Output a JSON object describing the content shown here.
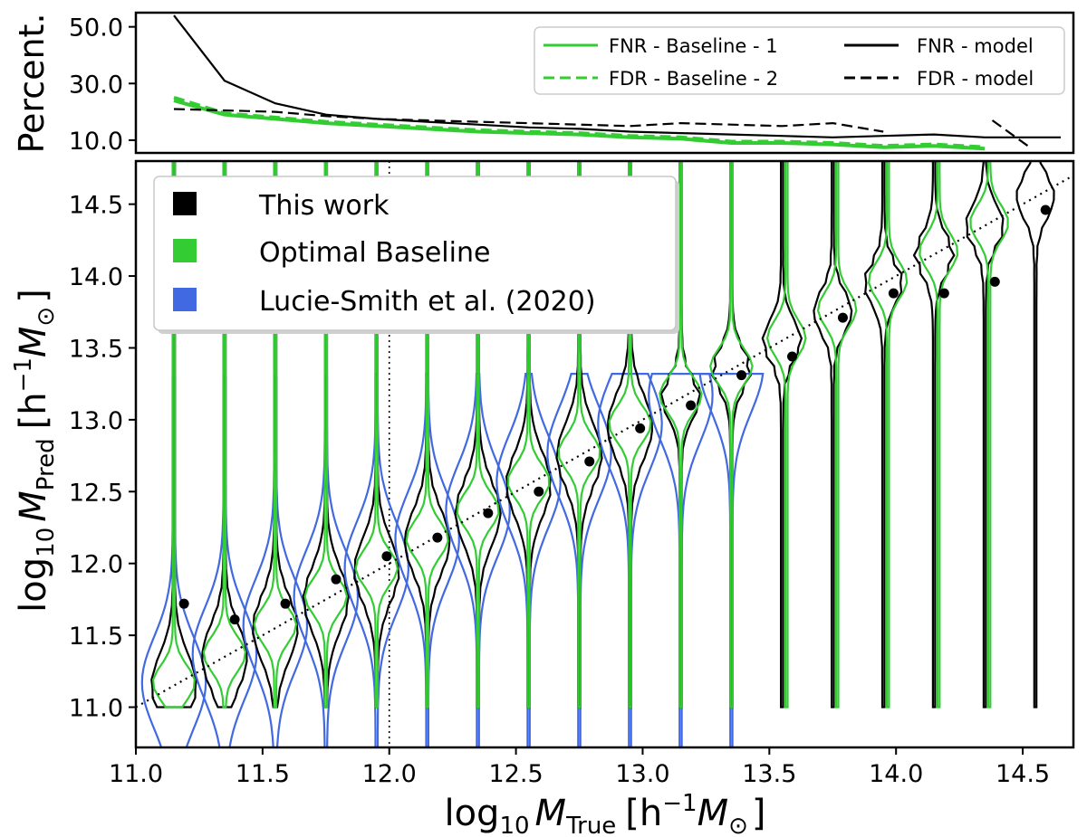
{
  "chart_data": [
    {
      "panel": "top",
      "type": "line",
      "ylabel": "Percent.",
      "xlim": [
        11.0,
        14.7
      ],
      "ylim": [
        5.5,
        55.0
      ],
      "yticks": [
        10.0,
        30.0,
        50.0
      ],
      "ytick_labels": [
        "10.0",
        "30.0",
        "50.0"
      ],
      "grid": false,
      "legend_position": "top-right",
      "legend_entries": [
        {
          "label": "FNR - Baseline - 1",
          "color": "#33cc33",
          "dash": "solid"
        },
        {
          "label": "FDR - Baseline - 2",
          "color": "#33cc33",
          "dash": "dashed"
        },
        {
          "label": "FNR - model",
          "color": "#000000",
          "dash": "solid"
        },
        {
          "label": "FDR - model",
          "color": "#000000",
          "dash": "dashed"
        }
      ],
      "series": [
        {
          "legend_index": 0,
          "color": "#33cc33",
          "dash": "solid",
          "x": [
            11.15,
            11.35,
            11.55,
            11.75,
            11.95,
            12.15,
            12.35,
            12.55,
            12.75,
            12.95,
            13.15,
            13.35,
            13.55,
            13.75,
            13.95,
            14.15,
            14.35
          ],
          "y": [
            24.0,
            19.0,
            17.5,
            16.0,
            15.0,
            14.0,
            13.0,
            12.5,
            12.0,
            11.0,
            10.5,
            9.0,
            9.0,
            8.5,
            7.5,
            8.0,
            7.0
          ]
        },
        {
          "legend_index": 1,
          "color": "#33cc33",
          "dash": "dashed",
          "x": [
            11.15,
            11.35,
            11.55,
            11.75,
            11.95,
            12.15,
            12.35,
            12.55,
            12.75,
            12.95,
            13.15,
            13.35,
            13.55,
            13.75,
            13.95,
            14.15,
            14.35
          ],
          "y": [
            25.0,
            19.5,
            18.0,
            16.5,
            15.5,
            14.5,
            13.5,
            13.0,
            12.5,
            11.5,
            11.0,
            9.5,
            9.5,
            9.0,
            8.0,
            8.5,
            7.5
          ]
        },
        {
          "legend_index": 2,
          "color": "#000000",
          "dash": "solid",
          "x": [
            11.15,
            11.35,
            11.55,
            11.75,
            11.95,
            12.15,
            12.35,
            12.55,
            12.75,
            12.95,
            13.15,
            13.35,
            13.55,
            13.75,
            13.95,
            14.15,
            14.35,
            14.55,
            14.65
          ],
          "y": [
            54.0,
            31.0,
            23.0,
            19.0,
            17.5,
            16.5,
            15.5,
            14.5,
            14.0,
            13.0,
            12.5,
            12.0,
            11.5,
            11.0,
            11.5,
            12.0,
            11.0,
            11.0,
            11.0
          ]
        },
        {
          "legend_index": 3,
          "color": "#000000",
          "dash": "dashed",
          "x": [
            11.15,
            11.35,
            11.55,
            11.75,
            11.95,
            12.15,
            12.35,
            12.55,
            12.75,
            12.95,
            13.15,
            13.35,
            13.55,
            13.75,
            13.95
          ],
          "y": [
            21.0,
            20.5,
            20.0,
            18.5,
            17.5,
            17.0,
            16.5,
            16.0,
            15.5,
            15.0,
            16.0,
            15.5,
            15.0,
            16.0,
            13.0
          ]
        },
        {
          "legend_index": 3,
          "color": "#000000",
          "dash": "dashed",
          "x": [
            14.38,
            14.52
          ],
          "y": [
            17.0,
            8.0
          ]
        }
      ]
    },
    {
      "panel": "bottom",
      "type": "violin",
      "xlabel_base": "log",
      "xlabel_sub": "10",
      "xlabel_var": "M",
      "xlabel_varsub": "True",
      "xlabel_unit_open": "[h",
      "xlabel_unit_sup": "−1",
      "xlabel_unit_M": "M",
      "xlabel_unit_sub": "⊙",
      "xlabel_unit_close": "]",
      "ylabel_base": "log",
      "ylabel_sub": "10",
      "ylabel_var": "M",
      "ylabel_varsub": "Pred",
      "ylabel_unit_open": "[h",
      "ylabel_unit_sup": "−1",
      "ylabel_unit_M": "M",
      "ylabel_unit_sub": "⊙",
      "ylabel_unit_close": "]",
      "xlim": [
        11.0,
        14.7
      ],
      "ylim": [
        10.72,
        14.8
      ],
      "xticks": [
        11.0,
        11.5,
        12.0,
        12.5,
        13.0,
        13.5,
        14.0,
        14.5
      ],
      "xtick_labels": [
        "11.0",
        "11.5",
        "12.0",
        "12.5",
        "13.0",
        "13.5",
        "14.0",
        "14.5"
      ],
      "yticks": [
        11.0,
        11.5,
        12.0,
        12.5,
        13.0,
        13.5,
        14.0,
        14.5
      ],
      "ytick_labels": [
        "11.0",
        "11.5",
        "12.0",
        "12.5",
        "13.0",
        "13.5",
        "14.0",
        "14.5"
      ],
      "grid": false,
      "vertical_reference_x": 12.0,
      "identity_line": true,
      "legend_position": "top-left",
      "legend_entries": [
        {
          "label": "This work",
          "color": "#000000"
        },
        {
          "label": "Optimal Baseline",
          "color": "#33cc33"
        },
        {
          "label": "Lucie-Smith et al. (2020)",
          "color": "#4169e1"
        }
      ],
      "this_work_medians": {
        "x": [
          11.15,
          11.35,
          11.55,
          11.75,
          11.95,
          12.15,
          12.35,
          12.55,
          12.75,
          12.95,
          13.15,
          13.35,
          13.55,
          13.75,
          13.95,
          14.15,
          14.35,
          14.55
        ],
        "y": [
          11.72,
          11.61,
          11.72,
          11.89,
          12.05,
          12.18,
          12.35,
          12.5,
          12.71,
          12.94,
          13.1,
          13.31,
          13.44,
          13.71,
          13.88,
          13.88,
          13.96,
          14.46
        ]
      },
      "bins_x": [
        11.15,
        11.35,
        11.55,
        11.75,
        11.95,
        12.15,
        12.35,
        12.55,
        12.75,
        12.95,
        13.15,
        13.35,
        13.55,
        13.75,
        13.95,
        14.15,
        14.35,
        14.55
      ],
      "blue_bins": 12,
      "green_bins": 17
    }
  ]
}
